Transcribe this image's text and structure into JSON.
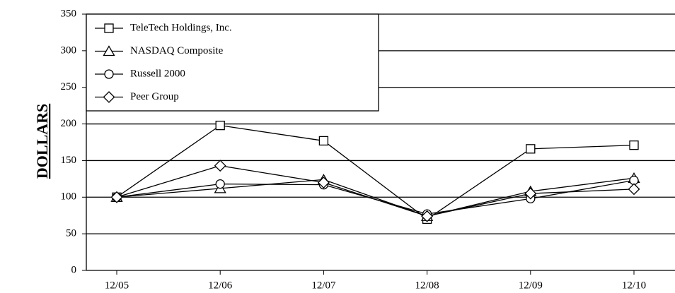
{
  "chart_data": {
    "type": "line",
    "y_label": "DOLLARS",
    "categories": [
      "12/05",
      "12/06",
      "12/07",
      "12/08",
      "12/09",
      "12/10"
    ],
    "series": [
      {
        "name": "TeleTech Holdings, Inc.",
        "color": "#000000",
        "marker": "square",
        "values": [
          100,
          198,
          177,
          70,
          166,
          171
        ]
      },
      {
        "name": "NASDAQ Composite",
        "color": "#000000",
        "marker": "triangle",
        "values": [
          100,
          112,
          124,
          74,
          108,
          126
        ]
      },
      {
        "name": "Russell 2000",
        "color": "#000000",
        "marker": "circle",
        "values": [
          100,
          118,
          117,
          77,
          98,
          123
        ]
      },
      {
        "name": "Peer Group",
        "color": "#000000",
        "marker": "diamond",
        "values": [
          100,
          143,
          120,
          74,
          105,
          111
        ]
      }
    ],
    "ylim": [
      0,
      350
    ],
    "yticks": [
      0,
      50,
      100,
      150,
      200,
      250,
      300,
      350
    ],
    "grid": true,
    "legend": "upper left"
  }
}
